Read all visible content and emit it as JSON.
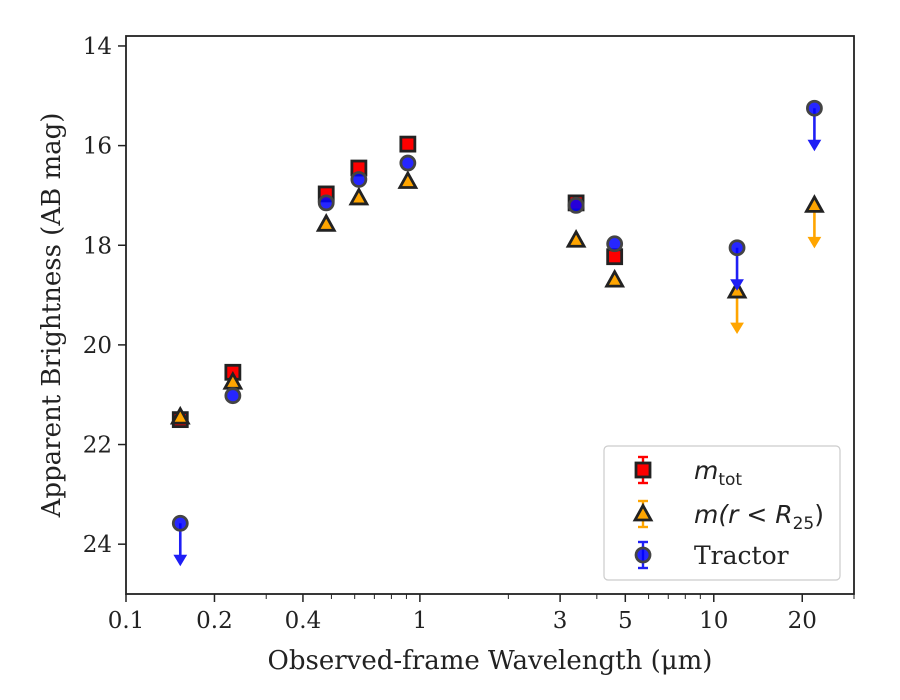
{
  "chart_data": {
    "type": "scatter",
    "xlabel": "Observed-frame Wavelength (μm)",
    "ylabel": "Apparent Brightness (AB mag)",
    "xscale": "log",
    "xlim": [
      0.1,
      30
    ],
    "ylim": [
      25,
      13.8
    ],
    "y_inverted": true,
    "grid": false,
    "legend_position": "lower right",
    "x_ticks": [
      {
        "value": 0.1,
        "label": "0.1"
      },
      {
        "value": 0.2,
        "label": "0.2"
      },
      {
        "value": 0.4,
        "label": "0.4"
      },
      {
        "value": 1,
        "label": "1"
      },
      {
        "value": 3,
        "label": "3"
      },
      {
        "value": 5,
        "label": "5"
      },
      {
        "value": 10,
        "label": "10"
      },
      {
        "value": 20,
        "label": "20"
      }
    ],
    "y_ticks": [
      {
        "value": 14,
        "label": "14"
      },
      {
        "value": 16,
        "label": "16"
      },
      {
        "value": 18,
        "label": "18"
      },
      {
        "value": 20,
        "label": "20"
      },
      {
        "value": 22,
        "label": "22"
      },
      {
        "value": 24,
        "label": "24"
      }
    ],
    "series": [
      {
        "name": "m_tot",
        "legend_main": "m",
        "legend_sub": "tot",
        "marker": "square",
        "fill": "#ff0000",
        "line_color": "#ff0000",
        "points": [
          {
            "x": 0.153,
            "y": 21.5
          },
          {
            "x": 0.231,
            "y": 20.55
          },
          {
            "x": 0.48,
            "y": 16.97
          },
          {
            "x": 0.62,
            "y": 16.45
          },
          {
            "x": 0.91,
            "y": 15.97
          },
          {
            "x": 3.4,
            "y": 17.15
          },
          {
            "x": 4.6,
            "y": 18.23
          }
        ]
      },
      {
        "name": "m(r < R_25)",
        "legend_main": "m(r < R",
        "legend_sub": "25",
        "legend_end": ")",
        "marker": "triangle",
        "fill": "#ffa500",
        "line_color": "#ffa500",
        "points": [
          {
            "x": 0.153,
            "y": 21.45
          },
          {
            "x": 0.231,
            "y": 20.75
          },
          {
            "x": 0.48,
            "y": 17.58
          },
          {
            "x": 0.62,
            "y": 17.05
          },
          {
            "x": 0.91,
            "y": 16.72
          },
          {
            "x": 3.4,
            "y": 17.9
          },
          {
            "x": 4.6,
            "y": 18.7
          },
          {
            "x": 12.0,
            "y": 18.92,
            "upper_limit": true
          },
          {
            "x": 22.0,
            "y": 17.2,
            "upper_limit": true
          }
        ]
      },
      {
        "name": "Tractor",
        "legend_main": "Tractor",
        "marker": "circle",
        "fill": "#0000ff",
        "line_color": "#1f1ff5",
        "points": [
          {
            "x": 0.153,
            "y": 23.58,
            "upper_limit": true
          },
          {
            "x": 0.231,
            "y": 21.02
          },
          {
            "x": 0.48,
            "y": 17.15
          },
          {
            "x": 0.62,
            "y": 16.68
          },
          {
            "x": 0.91,
            "y": 16.35
          },
          {
            "x": 3.4,
            "y": 17.2
          },
          {
            "x": 4.6,
            "y": 17.97
          },
          {
            "x": 12.0,
            "y": 18.05,
            "upper_limit": true
          },
          {
            "x": 22.0,
            "y": 15.25,
            "upper_limit": true
          }
        ]
      }
    ]
  }
}
